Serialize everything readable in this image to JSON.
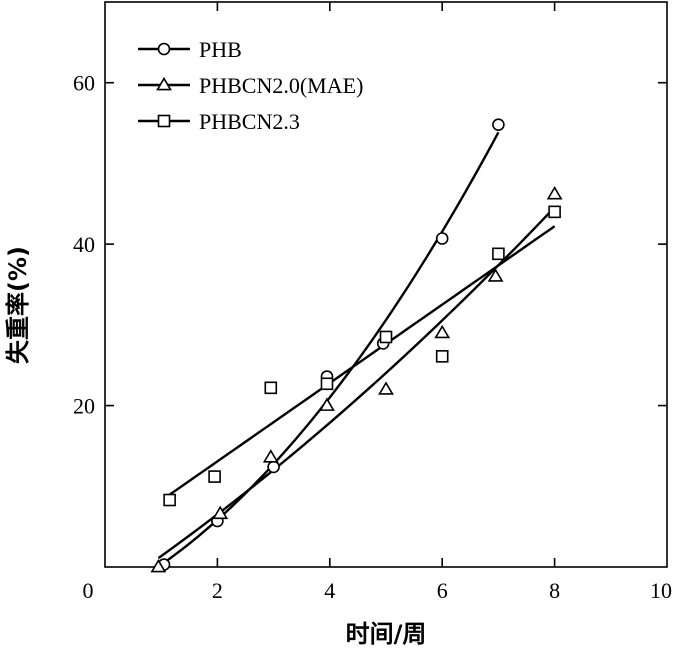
{
  "chart_data": {
    "type": "scatter",
    "xlabel": "时间/周",
    "ylabel": "失重率(%)",
    "xlim": [
      0,
      10
    ],
    "ylim": [
      0,
      70
    ],
    "x_ticks": [
      0,
      2,
      4,
      6,
      8,
      10
    ],
    "y_ticks": [
      20,
      40,
      60
    ],
    "grid": false,
    "legend_position": "top-left",
    "series": [
      {
        "name": "PHB",
        "marker": "circle",
        "x": [
          1.05,
          2.0,
          3.0,
          3.95,
          4.95,
          6.0,
          7.0
        ],
        "y": [
          0.3,
          5.7,
          12.4,
          23.6,
          27.7,
          40.7,
          54.8
        ],
        "fit": "curve"
      },
      {
        "name": "PHBCN2.0(MAE)",
        "marker": "triangle",
        "x": [
          0.95,
          2.05,
          2.95,
          3.95,
          5.0,
          6.0,
          6.95,
          8.0
        ],
        "y": [
          0.0,
          6.6,
          13.6,
          20.0,
          22.0,
          29.0,
          36.0,
          46.2
        ],
        "fit": "curve"
      },
      {
        "name": "PHBCN2.3",
        "marker": "square",
        "x": [
          1.15,
          1.95,
          2.95,
          3.95,
          5.0,
          6.0,
          7.0,
          8.0
        ],
        "y": [
          8.3,
          11.2,
          22.2,
          22.7,
          28.5,
          26.1,
          38.8,
          44.0
        ],
        "fit": "linear"
      }
    ]
  }
}
